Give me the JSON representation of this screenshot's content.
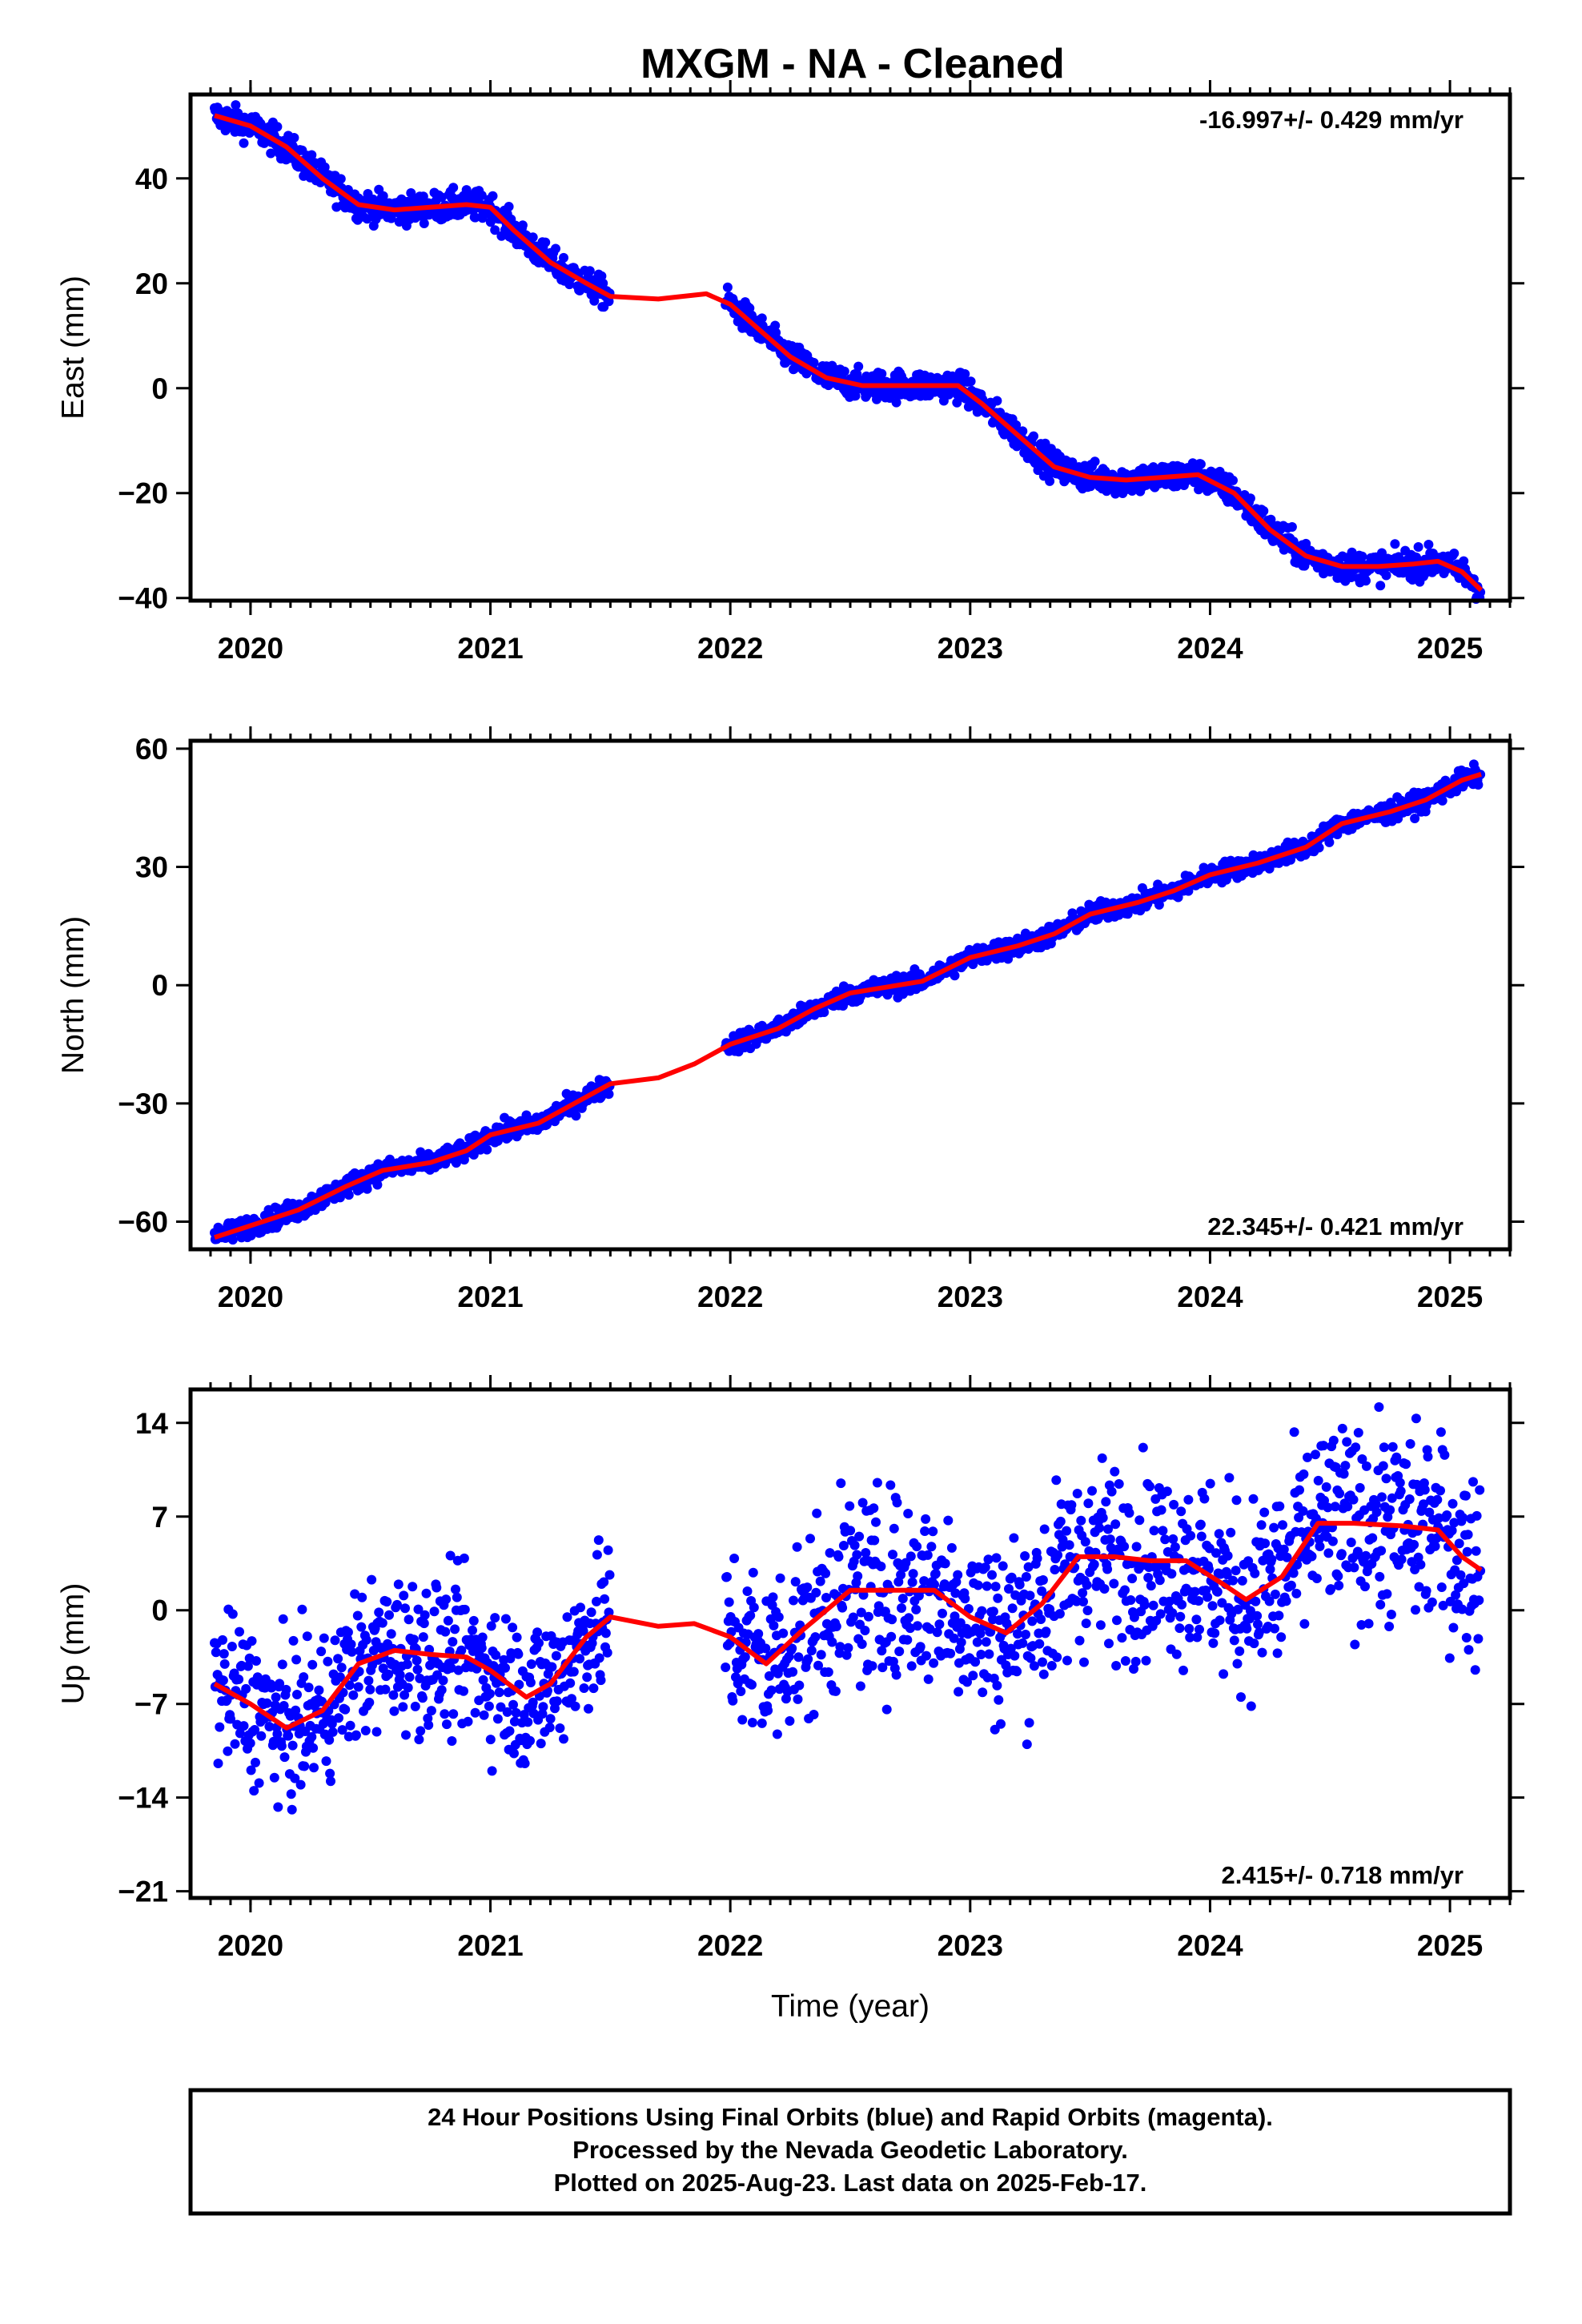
{
  "title": "MXGM  - NA - Cleaned",
  "colors": {
    "points": "#0000ff",
    "fit": "#ff0000",
    "frame": "#000000"
  },
  "footer": [
    "24 Hour Positions Using Final Orbits (blue) and Rapid Orbits (magenta).",
    "Processed by the Nevada Geodetic Laboratory.",
    "Plotted on 2025-Aug-23. Last data on 2025-Feb-17."
  ],
  "chart_data": [
    {
      "type": "scatter",
      "name": "east",
      "title": "",
      "xlabel": "",
      "ylabel": "East (mm)",
      "rate_text": "-16.997+/- 0.429 mm/yr",
      "rate_position": "top-right",
      "xlim": [
        2019.75,
        2025.25
      ],
      "ylim": [
        -40.5,
        56
      ],
      "x_ticks": [
        2020,
        2021,
        2022,
        2023,
        2024,
        2025
      ],
      "x_tick_labels": [
        "2020",
        "2021",
        "2022",
        "2023",
        "2024",
        "2025"
      ],
      "y_ticks": [
        40,
        20,
        0,
        -20,
        -40
      ],
      "y_tick_labels": [
        "40",
        "20",
        "0",
        "−20",
        "−40"
      ],
      "fit_curve": {
        "x": [
          2019.85,
          2020.0,
          2020.15,
          2020.3,
          2020.45,
          2020.6,
          2020.75,
          2020.9,
          2021.0,
          2021.1,
          2021.25,
          2021.4,
          2021.5,
          2021.7,
          2021.9,
          2022.0,
          2022.1,
          2022.25,
          2022.4,
          2022.55,
          2022.7,
          2022.85,
          2022.95,
          2023.05,
          2023.2,
          2023.35,
          2023.5,
          2023.65,
          2023.8,
          2023.95,
          2024.1,
          2024.25,
          2024.4,
          2024.55,
          2024.7,
          2024.85,
          2024.95,
          2025.05,
          2025.13
        ],
        "y": [
          52,
          50,
          46,
          40,
          35,
          34,
          34.5,
          35,
          34.5,
          30,
          24,
          20,
          17.5,
          17,
          18,
          16,
          12,
          6,
          2,
          0.5,
          0.5,
          0.5,
          0.5,
          -3,
          -9,
          -15,
          -17,
          -17.5,
          -17,
          -16.5,
          -20,
          -27,
          -32,
          -34,
          -34,
          -33.5,
          -33,
          -35,
          -38.5
        ]
      },
      "point_bands": [
        {
          "x0": 2019.85,
          "x1": 2021.5,
          "spread": 2.0
        },
        {
          "x0": 2021.98,
          "x1": 2025.13,
          "spread": 2.0
        }
      ]
    },
    {
      "type": "scatter",
      "name": "north",
      "title": "",
      "xlabel": "",
      "ylabel": "North (mm)",
      "rate_text": "22.345+/- 0.421 mm/yr",
      "rate_position": "bottom-right",
      "xlim": [
        2019.75,
        2025.25
      ],
      "ylim": [
        -67,
        62
      ],
      "x_ticks": [
        2020,
        2021,
        2022,
        2023,
        2024,
        2025
      ],
      "x_tick_labels": [
        "2020",
        "2021",
        "2022",
        "2023",
        "2024",
        "2025"
      ],
      "y_ticks": [
        60,
        30,
        0,
        -30,
        -60
      ],
      "y_tick_labels": [
        "60",
        "30",
        "0",
        "−30",
        "−60"
      ],
      "fit_curve": {
        "x": [
          2019.85,
          2020.0,
          2020.2,
          2020.4,
          2020.55,
          2020.75,
          2020.9,
          2021.0,
          2021.2,
          2021.35,
          2021.5,
          2021.7,
          2021.85,
          2022.0,
          2022.2,
          2022.35,
          2022.5,
          2022.65,
          2022.8,
          2023.0,
          2023.2,
          2023.35,
          2023.5,
          2023.7,
          2023.85,
          2024.0,
          2024.2,
          2024.4,
          2024.55,
          2024.75,
          2024.9,
          2025.05,
          2025.13
        ],
        "y": [
          -64,
          -61,
          -57,
          -51,
          -47,
          -45,
          -42,
          -38,
          -35,
          -30,
          -25,
          -23.5,
          -20,
          -15,
          -11,
          -6,
          -2,
          -0.5,
          1,
          7,
          10,
          13,
          18,
          21,
          24,
          28,
          31,
          35,
          41,
          44,
          47,
          52,
          53.5
        ]
      },
      "point_bands": [
        {
          "x0": 2019.85,
          "x1": 2021.5,
          "spread": 1.8
        },
        {
          "x0": 2021.98,
          "x1": 2025.13,
          "spread": 1.8
        }
      ]
    },
    {
      "type": "scatter",
      "name": "up",
      "title": "",
      "xlabel": "Time (year)",
      "ylabel": "Up (mm)",
      "rate_text": "2.415+/- 0.718 mm/yr",
      "rate_position": "bottom-right",
      "xlim": [
        2019.75,
        2025.25
      ],
      "ylim": [
        -21.5,
        16.5
      ],
      "x_ticks": [
        2020,
        2021,
        2022,
        2023,
        2024,
        2025
      ],
      "x_tick_labels": [
        "2020",
        "2021",
        "2022",
        "2023",
        "2024",
        "2025"
      ],
      "y_ticks": [
        14,
        7,
        0,
        -7,
        -14,
        -21
      ],
      "y_tick_labels": [
        "14",
        "7",
        "0",
        "−7",
        "−14",
        "−21"
      ],
      "fit_curve": {
        "x": [
          2019.85,
          2020.0,
          2020.15,
          2020.3,
          2020.45,
          2020.6,
          2020.75,
          2020.9,
          2021.0,
          2021.15,
          2021.25,
          2021.4,
          2021.5,
          2021.7,
          2021.85,
          2022.0,
          2022.15,
          2022.3,
          2022.5,
          2022.7,
          2022.85,
          2023.0,
          2023.15,
          2023.3,
          2023.45,
          2023.6,
          2023.75,
          2023.9,
          2024.05,
          2024.15,
          2024.3,
          2024.45,
          2024.6,
          2024.8,
          2024.95,
          2025.05,
          2025.13
        ],
        "y": [
          -5.5,
          -7,
          -8.8,
          -7.5,
          -4,
          -3,
          -3.3,
          -3.5,
          -4.5,
          -6.5,
          -5.5,
          -2,
          -0.5,
          -1.2,
          -1,
          -2,
          -4,
          -1.5,
          1.5,
          1.5,
          1.5,
          -0.5,
          -1.7,
          0.5,
          4,
          4,
          3.7,
          3.7,
          2,
          0.8,
          2.5,
          6.5,
          6.5,
          6.3,
          6,
          4,
          3
        ]
      },
      "point_bands": [
        {
          "x0": 2019.85,
          "x1": 2021.5,
          "spread": 4.0
        },
        {
          "x0": 2021.98,
          "x1": 2025.13,
          "spread": 5.0
        }
      ]
    }
  ]
}
